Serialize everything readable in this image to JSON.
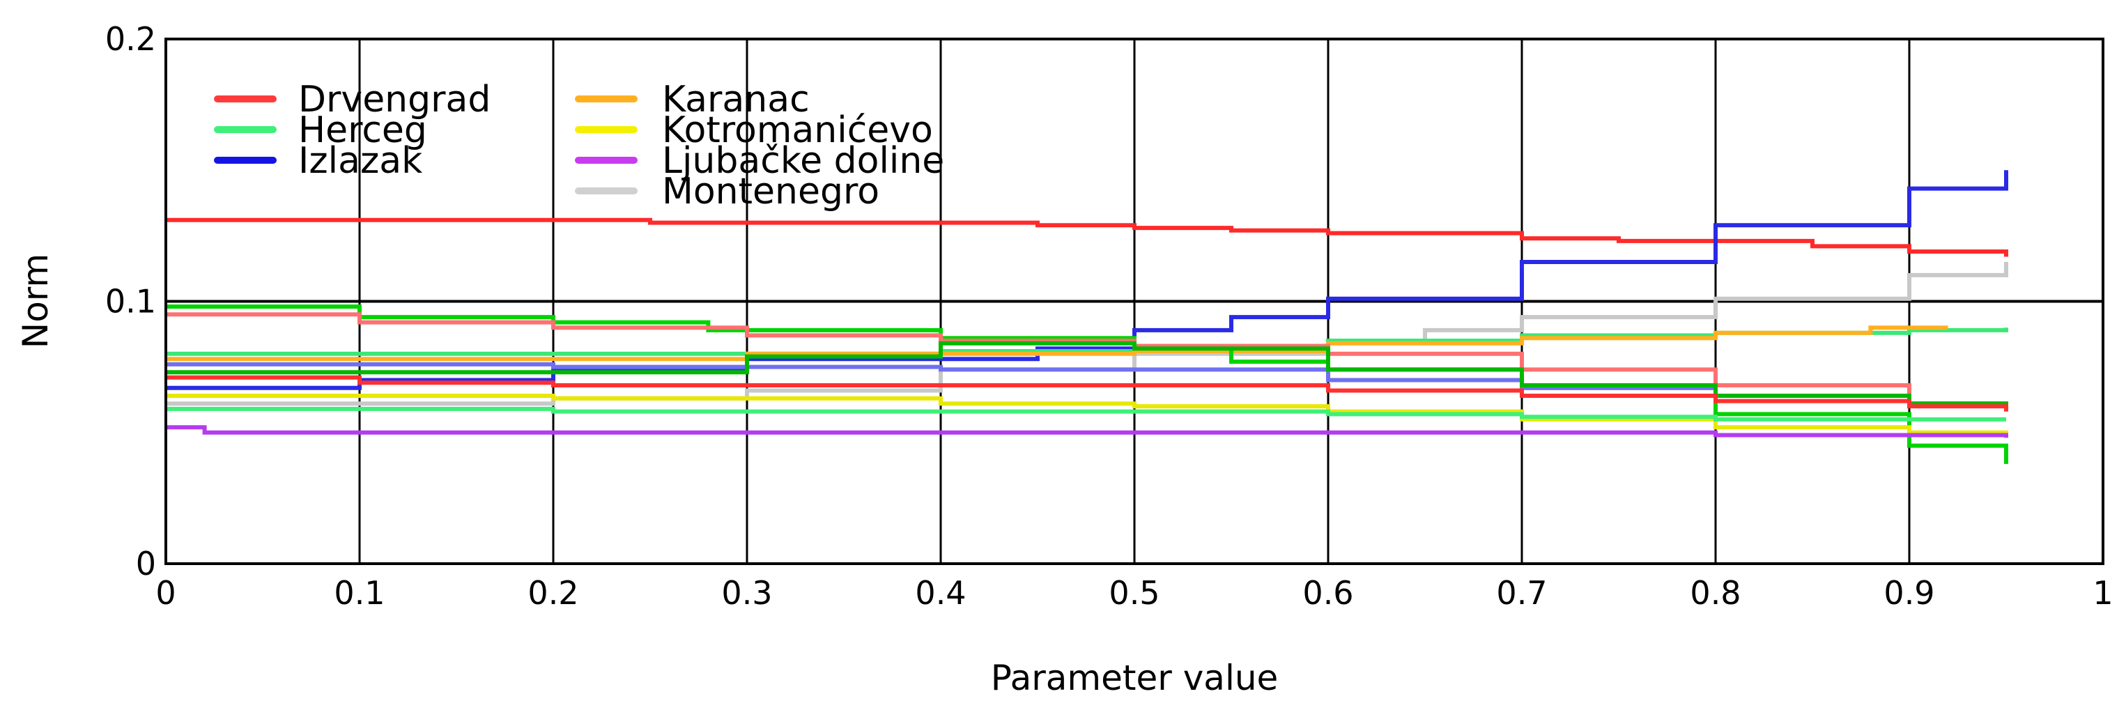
{
  "chart_data": {
    "type": "line",
    "title": "",
    "xlabel": "Parameter value",
    "ylabel": "Norm",
    "xlim": [
      0,
      1
    ],
    "ylim": [
      0,
      0.2
    ],
    "xticks": [
      "0",
      "0.1",
      "0.2",
      "0.3",
      "0.4",
      "0.5",
      "0.6",
      "0.7",
      "0.8",
      "0.9",
      "1"
    ],
    "yticks": [
      "0",
      "0.1",
      "0.2"
    ],
    "grid": true,
    "legend_position": "top-left",
    "legend": [
      {
        "name": "Drvengrad",
        "color": "#ff3b3b"
      },
      {
        "name": "Herceg",
        "color": "#3ef07a"
      },
      {
        "name": "Izlazak",
        "color": "#1414e6"
      },
      {
        "name": "Karanac",
        "color": "#ffb020"
      },
      {
        "name": "Kotromanićevo",
        "color": "#f5f000"
      },
      {
        "name": "Ljubačke doline",
        "color": "#c83cf0"
      },
      {
        "name": "Montenegro",
        "color": "#d0d0d0"
      }
    ],
    "series": [
      {
        "color": "#ff2a2a",
        "x": [
          0,
          0.2,
          0.25,
          0.45,
          0.5,
          0.55,
          0.6,
          0.7,
          0.75,
          0.85,
          0.9,
          0.95
        ],
        "y": [
          0.131,
          0.131,
          0.13,
          0.129,
          0.128,
          0.127,
          0.126,
          0.124,
          0.123,
          0.121,
          0.119,
          0.117
        ]
      },
      {
        "color": "#2a2ae6",
        "x": [
          0,
          0.1,
          0.2,
          0.3,
          0.45,
          0.5,
          0.55,
          0.6,
          0.7,
          0.8,
          0.9,
          0.95
        ],
        "y": [
          0.067,
          0.07,
          0.074,
          0.078,
          0.082,
          0.089,
          0.094,
          0.101,
          0.115,
          0.129,
          0.143,
          0.15
        ]
      },
      {
        "color": "#c8c8c8",
        "x": [
          0,
          0.2,
          0.3,
          0.4,
          0.5,
          0.6,
          0.65,
          0.7,
          0.8,
          0.9,
          0.95
        ],
        "y": [
          0.061,
          0.063,
          0.066,
          0.074,
          0.08,
          0.085,
          0.089,
          0.094,
          0.101,
          0.11,
          0.115
        ]
      },
      {
        "color": "#3ae876",
        "x": [
          0,
          0.2,
          0.4,
          0.55,
          0.6,
          0.7,
          0.8,
          0.9,
          0.95
        ],
        "y": [
          0.08,
          0.08,
          0.081,
          0.083,
          0.085,
          0.087,
          0.088,
          0.089,
          0.09
        ]
      },
      {
        "color": "#ffb020",
        "x": [
          0,
          0.3,
          0.5,
          0.6,
          0.7,
          0.8,
          0.88,
          0.9,
          0.92
        ],
        "y": [
          0.078,
          0.08,
          0.081,
          0.084,
          0.086,
          0.088,
          0.09,
          0.09,
          0.09
        ]
      },
      {
        "color": "#00d400",
        "x": [
          0,
          0.1,
          0.2,
          0.28,
          0.4,
          0.5,
          0.55,
          0.6,
          0.7,
          0.8,
          0.9,
          0.95
        ],
        "y": [
          0.098,
          0.094,
          0.092,
          0.089,
          0.086,
          0.083,
          0.077,
          0.074,
          0.067,
          0.057,
          0.045,
          0.038
        ]
      },
      {
        "color": "#ff7070",
        "x": [
          0,
          0.1,
          0.2,
          0.3,
          0.4,
          0.5,
          0.6,
          0.7,
          0.8,
          0.9,
          0.95
        ],
        "y": [
          0.095,
          0.092,
          0.09,
          0.087,
          0.085,
          0.083,
          0.08,
          0.074,
          0.068,
          0.061,
          0.058
        ]
      },
      {
        "color": "#7070f0",
        "x": [
          0,
          0.2,
          0.4,
          0.5,
          0.6,
          0.7,
          0.8,
          0.9,
          0.95
        ],
        "y": [
          0.076,
          0.075,
          0.074,
          0.074,
          0.07,
          0.067,
          0.064,
          0.061,
          0.059
        ]
      },
      {
        "color": "#00b800",
        "x": [
          0,
          0.3,
          0.4,
          0.5,
          0.6,
          0.7,
          0.8,
          0.9,
          0.95
        ],
        "y": [
          0.073,
          0.079,
          0.084,
          0.082,
          0.074,
          0.068,
          0.064,
          0.061,
          0.06
        ]
      },
      {
        "color": "#ff3030",
        "x": [
          0,
          0.1,
          0.2,
          0.4,
          0.5,
          0.6,
          0.7,
          0.8,
          0.9,
          0.95
        ],
        "y": [
          0.071,
          0.069,
          0.068,
          0.068,
          0.068,
          0.066,
          0.064,
          0.062,
          0.06,
          0.058
        ]
      },
      {
        "color": "#e8e800",
        "x": [
          0,
          0.2,
          0.4,
          0.5,
          0.6,
          0.7,
          0.8,
          0.9,
          0.95
        ],
        "y": [
          0.064,
          0.063,
          0.061,
          0.06,
          0.058,
          0.055,
          0.052,
          0.05,
          0.049
        ]
      },
      {
        "color": "#3ef07a",
        "x": [
          0,
          0.2,
          0.4,
          0.5,
          0.6,
          0.7,
          0.8,
          0.9,
          0.95
        ],
        "y": [
          0.059,
          0.058,
          0.058,
          0.058,
          0.057,
          0.056,
          0.055,
          0.055,
          0.055
        ]
      },
      {
        "color": "#b43cf0",
        "x": [
          0,
          0.02,
          0.2,
          0.5,
          0.8,
          0.95
        ],
        "y": [
          0.052,
          0.05,
          0.05,
          0.05,
          0.049,
          0.048
        ]
      }
    ]
  }
}
